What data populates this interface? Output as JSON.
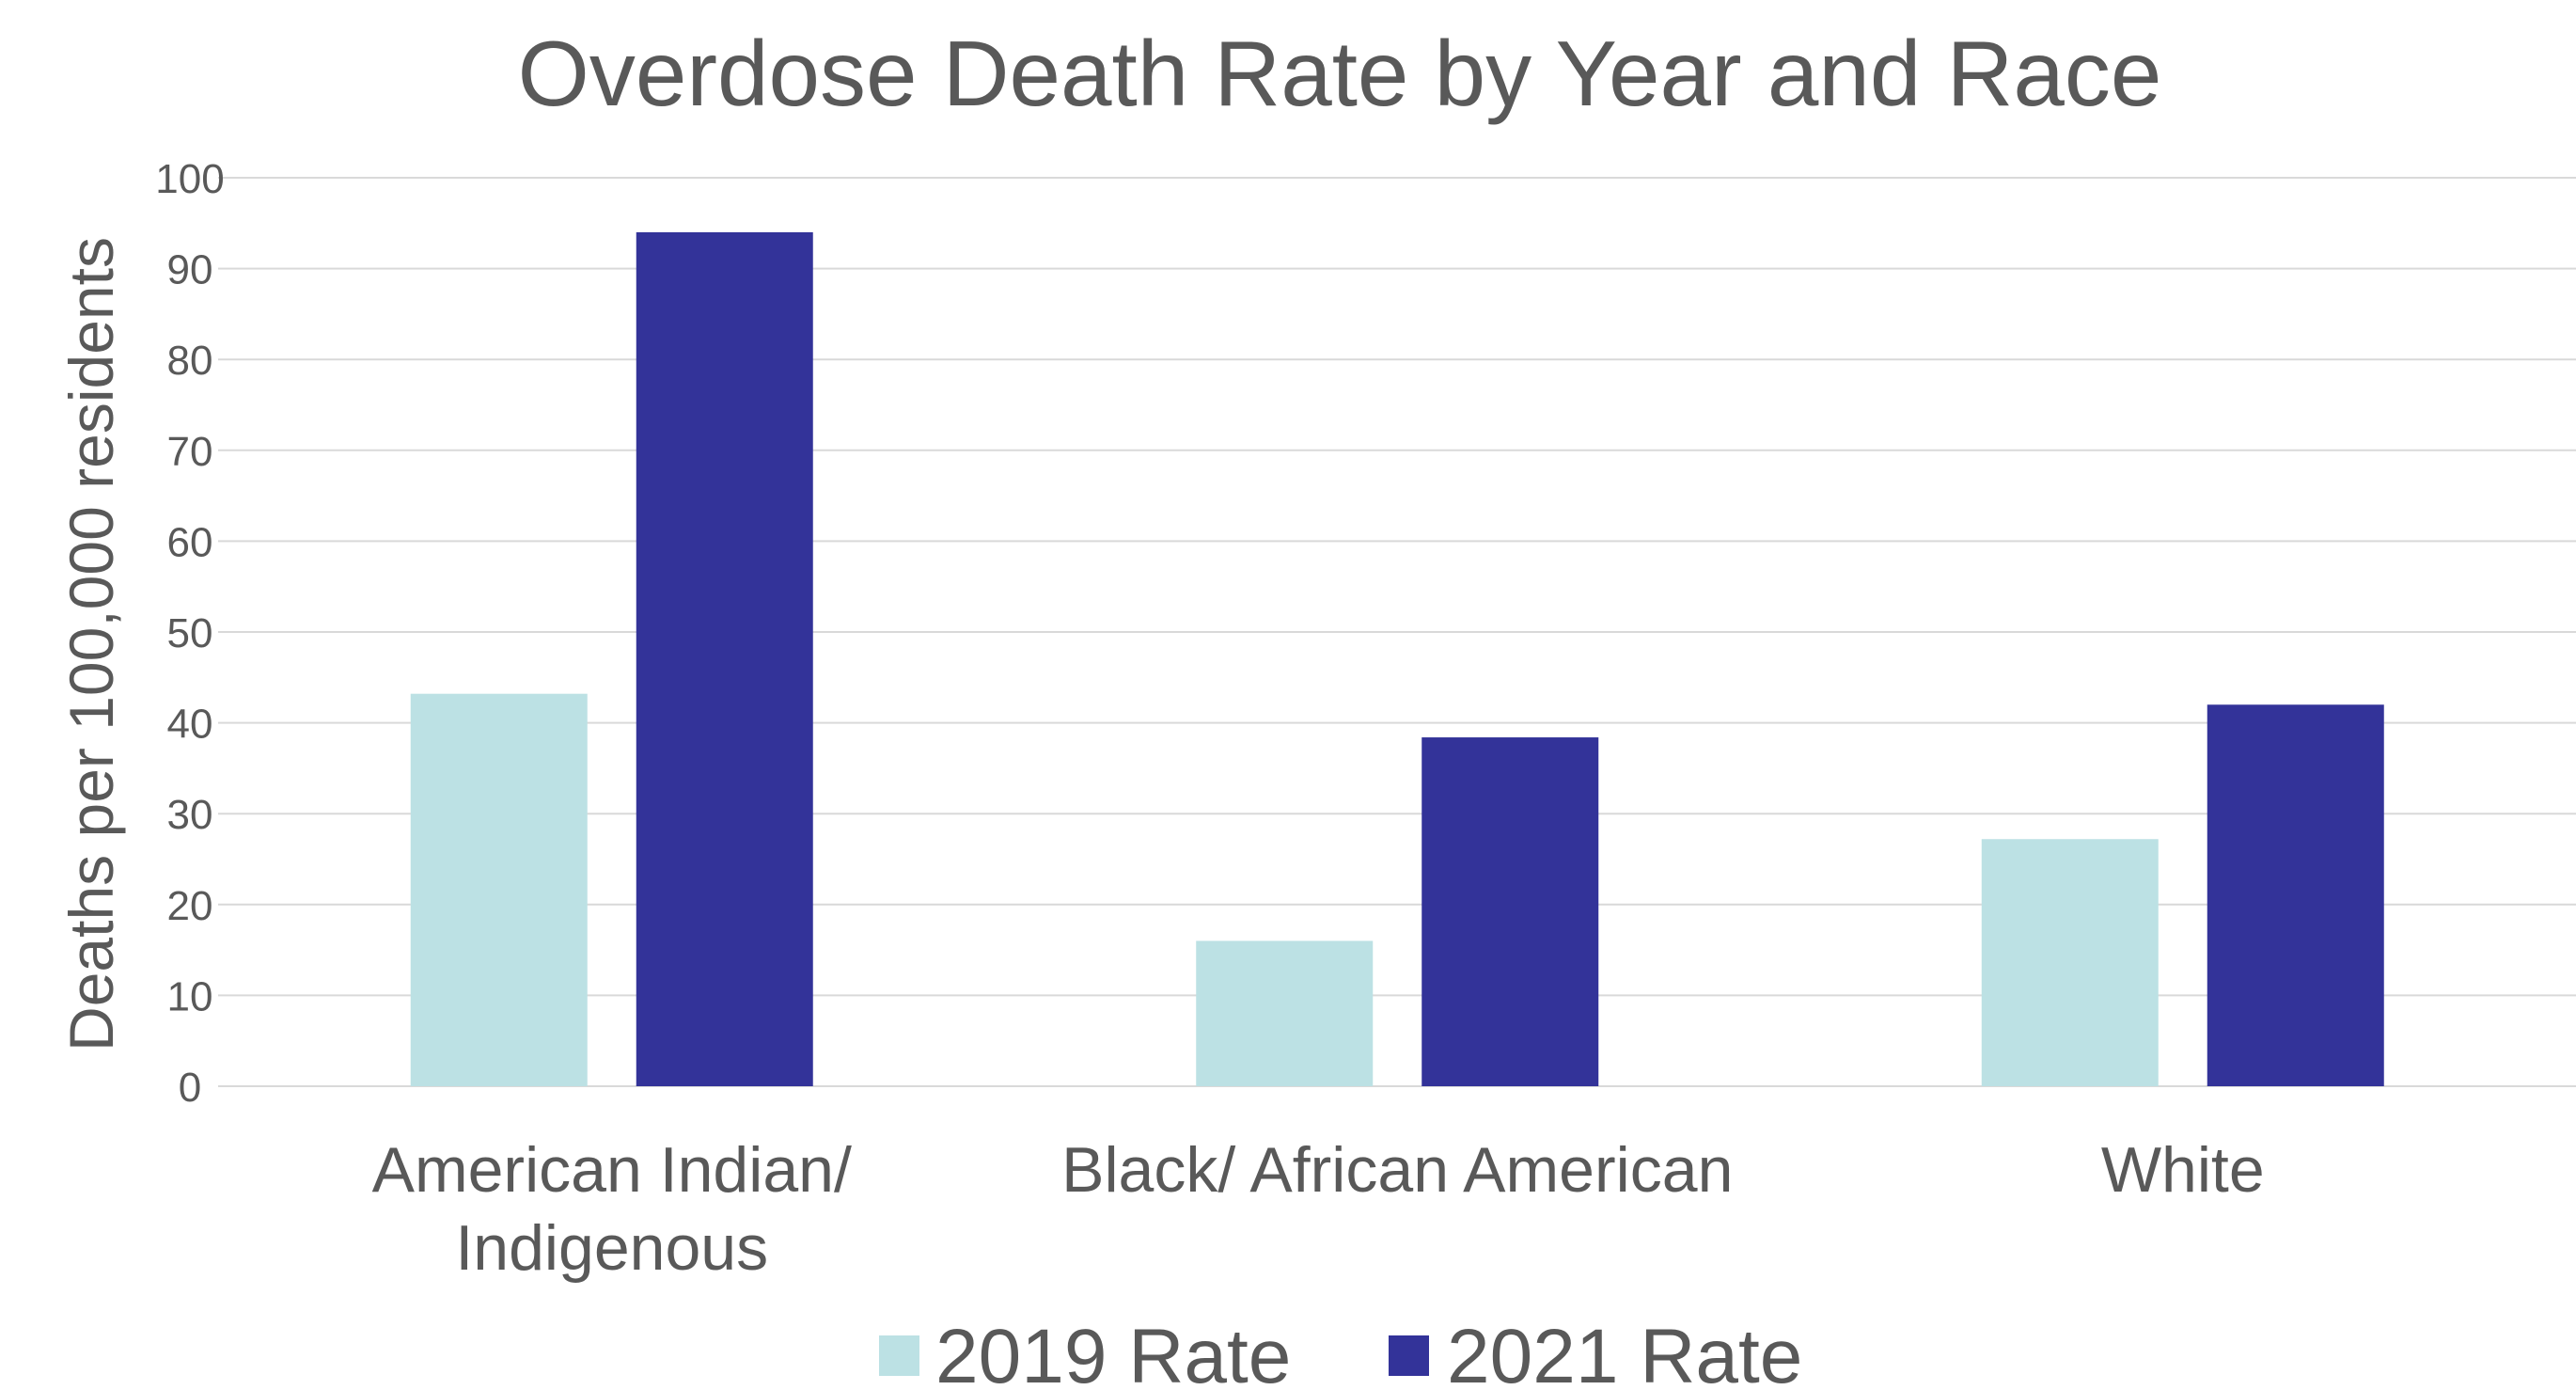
{
  "chart_data": {
    "type": "bar",
    "title": "Overdose Death Rate by Year and Race",
    "xlabel": "",
    "ylabel": "Deaths per 100,000 residents",
    "ylim": [
      0,
      100
    ],
    "yticks": [
      0,
      10,
      20,
      30,
      40,
      50,
      60,
      70,
      80,
      90,
      100
    ],
    "grid": true,
    "legend_position": "bottom",
    "categories": [
      [
        "American Indian/",
        "Indigenous"
      ],
      [
        "Black/ African American"
      ],
      [
        "White"
      ]
    ],
    "series": [
      {
        "name": "2019 Rate",
        "color": "#bce1e4",
        "values": [
          43.2,
          16.0,
          27.2
        ]
      },
      {
        "name": "2021 Rate",
        "color": "#333399",
        "values": [
          94.0,
          38.4,
          42.0
        ]
      }
    ]
  }
}
